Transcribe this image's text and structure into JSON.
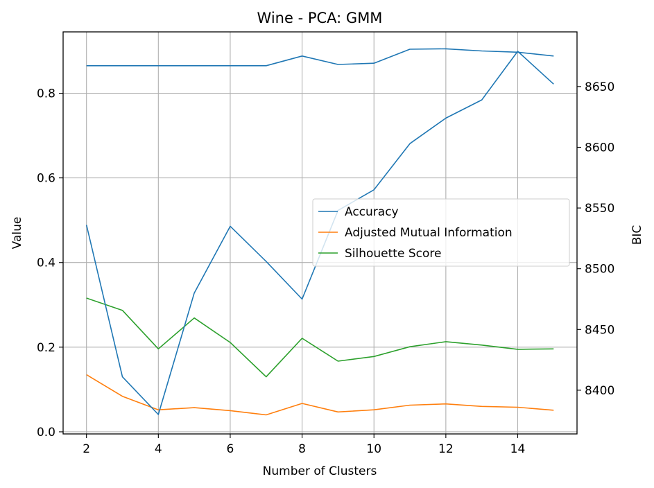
{
  "chart_data": {
    "type": "line",
    "title": "Wine - PCA: GMM",
    "xlabel": "Number of Clusters",
    "ylabel": "Value",
    "y2label": "BIC",
    "x": [
      2,
      3,
      4,
      5,
      6,
      7,
      8,
      9,
      10,
      11,
      12,
      13,
      14,
      15
    ],
    "xticks": [
      "2",
      "4",
      "6",
      "8",
      "10",
      "12",
      "14"
    ],
    "ylim": [
      -0.005,
      0.945
    ],
    "yticks": [
      "0.0",
      "0.2",
      "0.4",
      "0.6",
      "0.8"
    ],
    "y2lim": [
      8364,
      8695
    ],
    "y2ticks": [
      "8400",
      "8450",
      "8500",
      "8550",
      "8600",
      "8650"
    ],
    "grid": true,
    "legend_position": "center-right",
    "series": [
      {
        "name": "Accuracy",
        "axis": "left",
        "color": "#1f77b4",
        "values": [
          0.865,
          0.865,
          0.865,
          0.865,
          0.865,
          0.865,
          0.888,
          0.868,
          0.871,
          0.904,
          0.905,
          0.9,
          0.897,
          0.888
        ]
      },
      {
        "name": "Adjusted Mutual Information",
        "axis": "left",
        "color": "#ff7f0e",
        "values": [
          0.135,
          0.084,
          0.052,
          0.057,
          0.05,
          0.04,
          0.067,
          0.047,
          0.052,
          0.063,
          0.066,
          0.06,
          0.058,
          0.051
        ]
      },
      {
        "name": "Silhouette Score",
        "axis": "left",
        "color": "#2ca02c",
        "values": [
          0.316,
          0.287,
          0.196,
          0.269,
          0.211,
          0.13,
          0.221,
          0.167,
          0.178,
          0.201,
          0.213,
          0.205,
          0.195,
          0.196
        ]
      },
      {
        "name": "",
        "axis": "right",
        "color": "#1f77b4",
        "values": [
          8536,
          8411,
          8380,
          8480,
          8535,
          8506,
          8475,
          8548,
          8565,
          8603,
          8624,
          8639,
          8679,
          8652
        ]
      }
    ]
  }
}
